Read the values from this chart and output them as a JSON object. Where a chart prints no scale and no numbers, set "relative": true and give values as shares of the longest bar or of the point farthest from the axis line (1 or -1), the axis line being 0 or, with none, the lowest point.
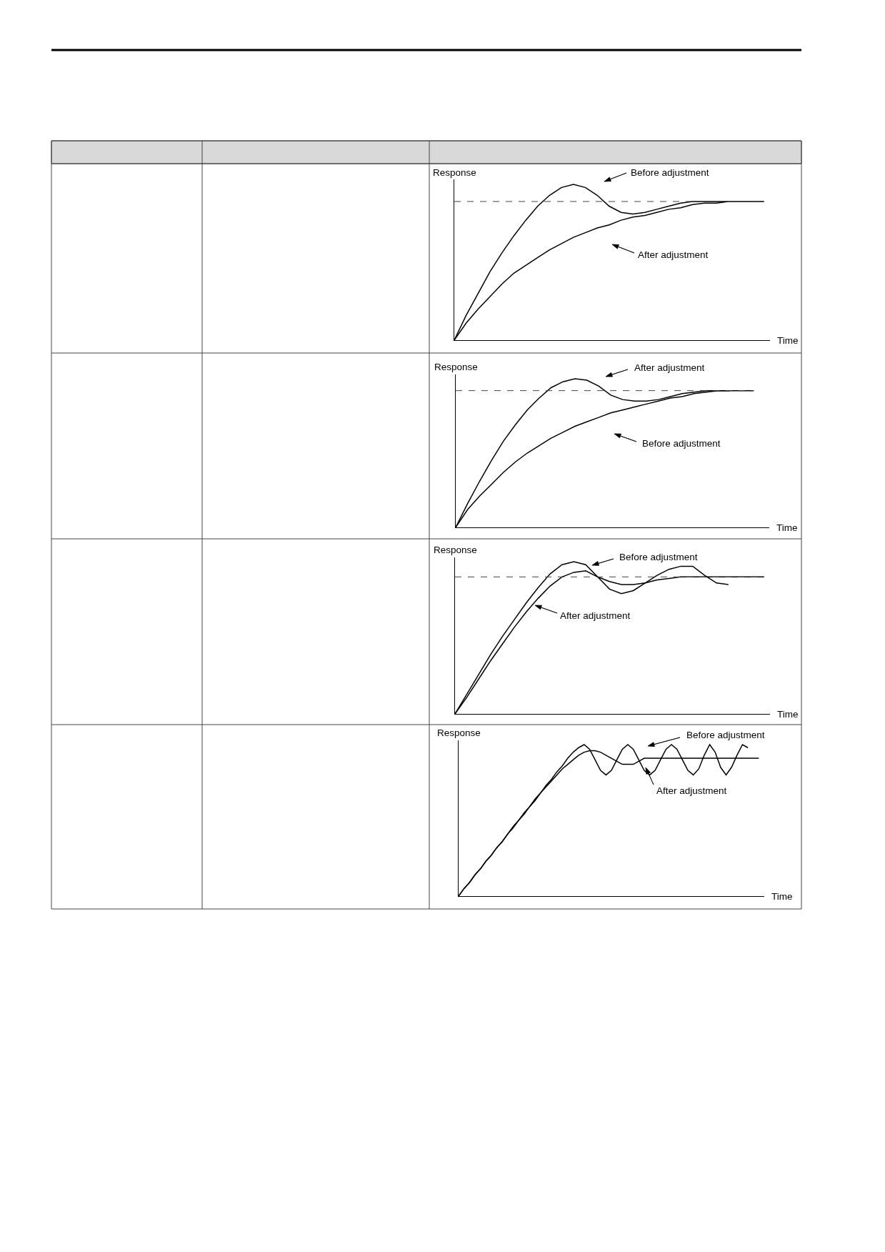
{
  "chart_data": [
    {
      "type": "line",
      "relative": true,
      "xlabel": "Time",
      "ylabel": "Response",
      "legend": "top right",
      "categories": [
        null,
        null,
        null,
        null,
        null,
        null,
        null,
        null,
        null,
        null,
        null,
        null,
        null,
        null,
        null,
        null,
        null,
        null,
        null,
        null,
        null,
        null,
        null,
        null,
        null,
        null,
        null
      ],
      "series": [
        {
          "name": "Before adjustment",
          "color": "#000000",
          "values": [
            0,
            0.16,
            0.3,
            0.44,
            0.56,
            0.67,
            0.77,
            0.86,
            0.93,
            0.98,
            1.0,
            0.98,
            0.93,
            0.86,
            0.82,
            0.81,
            0.82,
            0.84,
            0.86,
            0.88,
            0.89,
            0.89,
            0.89,
            0.89,
            0.89,
            0.89,
            0.89
          ]
        },
        {
          "name": "After adjustment",
          "color": "#000000",
          "values": [
            0,
            0.11,
            0.2,
            0.28,
            0.36,
            0.43,
            0.48,
            0.53,
            0.58,
            0.62,
            0.66,
            0.69,
            0.72,
            0.74,
            0.77,
            0.79,
            0.8,
            0.82,
            0.84,
            0.85,
            0.87,
            0.88,
            0.88,
            0.89,
            null,
            null,
            null
          ]
        }
      ],
      "ref_lines": [
        {
          "axis": "y",
          "value": 0.89,
          "line_style": "dashed",
          "color": "#444444"
        }
      ]
    },
    {
      "type": "line",
      "relative": true,
      "xlabel": "Time",
      "ylabel": "Response",
      "legend": "top right",
      "categories": [
        null,
        null,
        null,
        null,
        null,
        null,
        null,
        null,
        null,
        null,
        null,
        null,
        null,
        null,
        null,
        null,
        null,
        null,
        null,
        null,
        null,
        null,
        null,
        null,
        null,
        null
      ],
      "series": [
        {
          "name": "After adjustment",
          "color": "#000000",
          "values": [
            0,
            0.16,
            0.31,
            0.45,
            0.58,
            0.69,
            0.79,
            0.87,
            0.94,
            0.98,
            1.0,
            0.99,
            0.95,
            0.89,
            0.86,
            0.85,
            0.85,
            0.86,
            0.88,
            0.9,
            0.91,
            0.92,
            0.92,
            0.92,
            0.92,
            0.92
          ]
        },
        {
          "name": "Before adjustment",
          "color": "#000000",
          "values": [
            0,
            0.12,
            0.21,
            0.29,
            0.37,
            0.44,
            0.5,
            0.55,
            0.6,
            0.64,
            0.68,
            0.71,
            0.74,
            0.77,
            0.79,
            0.81,
            0.83,
            0.85,
            0.87,
            0.88,
            0.9,
            0.91,
            0.92,
            0.92,
            null,
            null
          ]
        }
      ],
      "ref_lines": [
        {
          "axis": "y",
          "value": 0.92,
          "line_style": "dashed",
          "color": "#444444"
        }
      ]
    },
    {
      "type": "line",
      "relative": true,
      "xlabel": "Time",
      "ylabel": "Response",
      "legend": "top",
      "categories": [
        null,
        null,
        null,
        null,
        null,
        null,
        null,
        null,
        null,
        null,
        null,
        null,
        null,
        null,
        null,
        null,
        null,
        null,
        null,
        null,
        null,
        null,
        null,
        null,
        null,
        null,
        null
      ],
      "series": [
        {
          "name": "Before adjustment",
          "color": "#000000",
          "values": [
            0,
            0.13,
            0.26,
            0.39,
            0.51,
            0.62,
            0.73,
            0.83,
            0.92,
            0.98,
            1.0,
            0.98,
            0.9,
            0.82,
            0.79,
            0.81,
            0.86,
            0.91,
            0.95,
            0.97,
            0.97,
            0.91,
            0.86,
            0.85,
            null,
            null,
            null
          ]
        },
        {
          "name": "After adjustment",
          "color": "#000000",
          "values": [
            0,
            0.11,
            0.23,
            0.35,
            0.46,
            0.57,
            0.67,
            0.76,
            0.84,
            0.9,
            0.93,
            0.94,
            0.9,
            0.87,
            0.85,
            0.85,
            0.86,
            0.88,
            0.89,
            0.9,
            0.9,
            0.9,
            0.9,
            0.9,
            0.9,
            0.9,
            0.9
          ]
        }
      ],
      "ref_lines": [
        {
          "axis": "y",
          "value": 0.9,
          "line_style": "dashed",
          "color": "#444444"
        }
      ]
    },
    {
      "type": "line",
      "relative": true,
      "xlabel": "Time",
      "ylabel": "Response",
      "legend": "top right",
      "categories": [
        null,
        null,
        null,
        null,
        null,
        null,
        null,
        null,
        null,
        null,
        null,
        null,
        null,
        null,
        null,
        null,
        null,
        null,
        null,
        null,
        null,
        null,
        null,
        null,
        null,
        null,
        null,
        null,
        null,
        null,
        null,
        null,
        null,
        null,
        null,
        null,
        null,
        null,
        null,
        null,
        null,
        null,
        null,
        null,
        null,
        null,
        null,
        null,
        null,
        null,
        null,
        null,
        null,
        null,
        null,
        null
      ],
      "series": [
        {
          "name": "Before adjustment",
          "color": "#000000",
          "values": [
            0,
            0.05,
            0.09,
            0.14,
            0.18,
            0.23,
            0.27,
            0.32,
            0.36,
            0.41,
            0.46,
            0.5,
            0.55,
            0.59,
            0.64,
            0.68,
            0.73,
            0.77,
            0.82,
            0.86,
            0.91,
            0.95,
            0.98,
            1.0,
            0.97,
            0.9,
            0.83,
            0.8,
            0.83,
            0.9,
            0.97,
            1.0,
            0.97,
            0.9,
            0.83,
            0.8,
            0.83,
            0.9,
            0.97,
            1.0,
            0.97,
            0.9,
            0.83,
            0.8,
            0.84,
            0.93,
            1.0,
            0.95,
            0.85,
            0.8,
            0.85,
            0.93,
            1.0,
            0.98,
            null,
            null
          ]
        },
        {
          "name": "After adjustment",
          "color": "#000000",
          "values": [
            0,
            0.05,
            0.09,
            0.14,
            0.18,
            0.23,
            0.27,
            0.32,
            0.36,
            0.41,
            0.45,
            0.5,
            0.54,
            0.59,
            0.63,
            0.68,
            0.72,
            0.76,
            0.8,
            0.84,
            0.87,
            0.9,
            0.93,
            0.95,
            0.96,
            0.96,
            0.95,
            0.93,
            0.91,
            0.89,
            0.87,
            0.87,
            0.87,
            0.89,
            0.91,
            0.91,
            0.91,
            0.91,
            0.91,
            0.91,
            0.91,
            0.91,
            0.91,
            0.91,
            0.91,
            0.91,
            0.91,
            0.91,
            0.91,
            0.91,
            0.91,
            0.91,
            0.91,
            0.91,
            0.91,
            0.91
          ]
        }
      ]
    }
  ]
}
